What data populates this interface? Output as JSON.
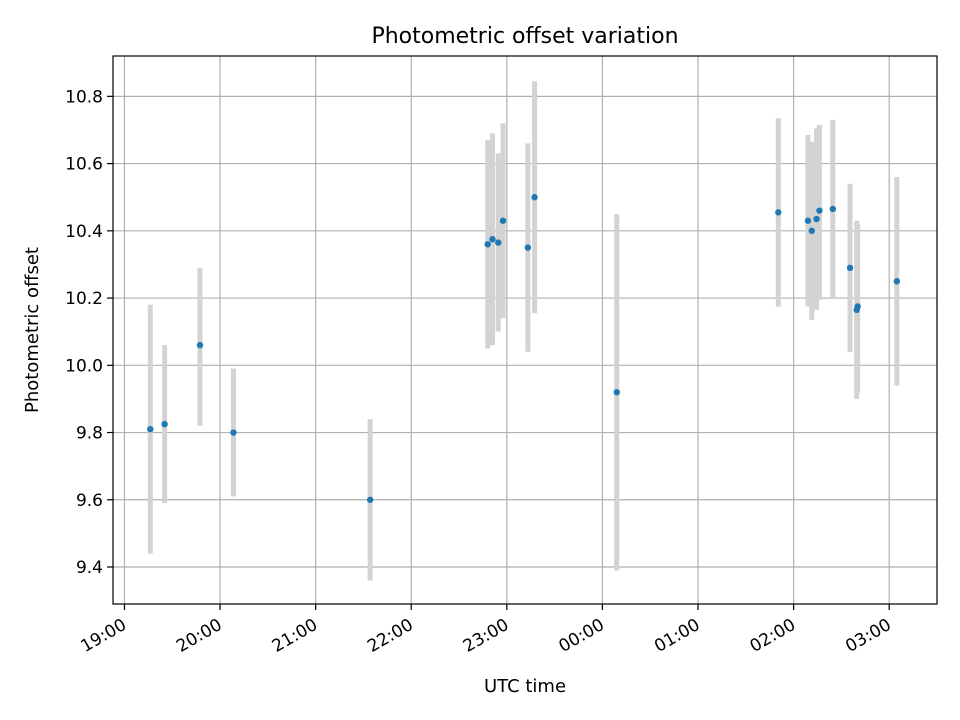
{
  "chart_data": {
    "type": "scatter",
    "title": "Photometric offset variation",
    "xlabel": "UTC time",
    "ylabel": "Photometric offset",
    "x_axis": "time (hours after 19:00 UTC; values > 5 wrap past midnight)",
    "xlim": [
      -0.12,
      8.5
    ],
    "ylim": [
      9.29,
      10.92
    ],
    "xticks": [
      {
        "value": 0,
        "label": "19:00"
      },
      {
        "value": 1,
        "label": "20:00"
      },
      {
        "value": 2,
        "label": "21:00"
      },
      {
        "value": 3,
        "label": "22:00"
      },
      {
        "value": 4,
        "label": "23:00"
      },
      {
        "value": 5,
        "label": "00:00"
      },
      {
        "value": 6,
        "label": "01:00"
      },
      {
        "value": 7,
        "label": "02:00"
      },
      {
        "value": 8,
        "label": "03:00"
      }
    ],
    "yticks": [
      {
        "value": 9.4,
        "label": "9.4"
      },
      {
        "value": 9.6,
        "label": "9.6"
      },
      {
        "value": 9.8,
        "label": "9.8"
      },
      {
        "value": 10.0,
        "label": "10.0"
      },
      {
        "value": 10.2,
        "label": "10.2"
      },
      {
        "value": 10.4,
        "label": "10.4"
      },
      {
        "value": 10.6,
        "label": "10.6"
      },
      {
        "value": 10.8,
        "label": "10.8"
      }
    ],
    "grid": true,
    "marker_color": "#1f77b4",
    "errorbar_color": "#d3d3d3",
    "points": [
      {
        "time": "19:16",
        "x": 0.27,
        "y": 9.81,
        "ylow": 9.44,
        "yhigh": 10.18
      },
      {
        "time": "19:25",
        "x": 0.42,
        "y": 9.825,
        "ylow": 9.59,
        "yhigh": 10.06
      },
      {
        "time": "19:47",
        "x": 0.79,
        "y": 10.06,
        "ylow": 9.82,
        "yhigh": 10.29
      },
      {
        "time": "20:08",
        "x": 1.14,
        "y": 9.8,
        "ylow": 9.61,
        "yhigh": 9.99
      },
      {
        "time": "21:34",
        "x": 2.57,
        "y": 9.6,
        "ylow": 9.36,
        "yhigh": 9.84
      },
      {
        "time": "22:48",
        "x": 3.8,
        "y": 10.36,
        "ylow": 10.05,
        "yhigh": 10.67
      },
      {
        "time": "22:51",
        "x": 3.85,
        "y": 10.375,
        "ylow": 10.06,
        "yhigh": 10.69
      },
      {
        "time": "22:55",
        "x": 3.91,
        "y": 10.365,
        "ylow": 10.1,
        "yhigh": 10.63
      },
      {
        "time": "22:57",
        "x": 3.96,
        "y": 10.43,
        "ylow": 10.14,
        "yhigh": 10.72
      },
      {
        "time": "23:13",
        "x": 4.22,
        "y": 10.35,
        "ylow": 10.04,
        "yhigh": 10.66
      },
      {
        "time": "23:17",
        "x": 4.29,
        "y": 10.5,
        "ylow": 10.155,
        "yhigh": 10.845
      },
      {
        "time": "00:08",
        "x": 5.15,
        "y": 9.92,
        "ylow": 9.39,
        "yhigh": 10.45
      },
      {
        "time": "01:50",
        "x": 6.84,
        "y": 10.455,
        "ylow": 10.175,
        "yhigh": 10.735
      },
      {
        "time": "02:09",
        "x": 7.15,
        "y": 10.43,
        "ylow": 10.175,
        "yhigh": 10.685
      },
      {
        "time": "02:11",
        "x": 7.19,
        "y": 10.4,
        "ylow": 10.135,
        "yhigh": 10.665
      },
      {
        "time": "02:14",
        "x": 7.24,
        "y": 10.435,
        "ylow": 10.165,
        "yhigh": 10.705
      },
      {
        "time": "02:16",
        "x": 7.27,
        "y": 10.46,
        "ylow": 10.195,
        "yhigh": 10.715
      },
      {
        "time": "02:24",
        "x": 7.41,
        "y": 10.465,
        "ylow": 10.2,
        "yhigh": 10.73
      },
      {
        "time": "02:35",
        "x": 7.59,
        "y": 10.29,
        "ylow": 10.04,
        "yhigh": 10.54
      },
      {
        "time": "02:39",
        "x": 7.66,
        "y": 10.165,
        "ylow": 9.9,
        "yhigh": 10.43
      },
      {
        "time": "02:40",
        "x": 7.67,
        "y": 10.175,
        "ylow": 9.92,
        "yhigh": 10.42
      },
      {
        "time": "03:05",
        "x": 8.08,
        "y": 10.25,
        "ylow": 9.94,
        "yhigh": 10.56
      }
    ]
  }
}
